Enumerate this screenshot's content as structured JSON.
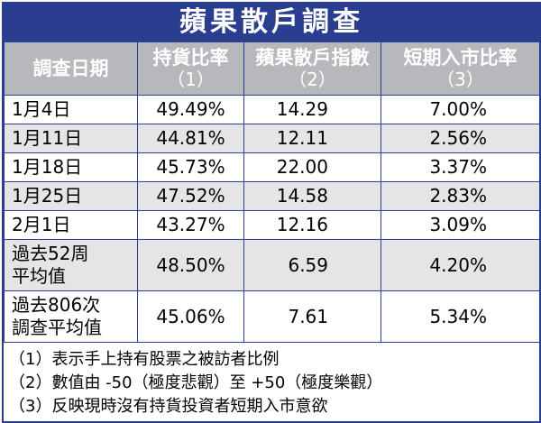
{
  "title": "蘋果散戶調查",
  "header": {
    "col1": "調查日期",
    "col2_main": "持貨比率",
    "col2_sub": "（1）",
    "col3_main": "蘋果散戶指數",
    "col3_sub": "（2）",
    "col4_main": "短期入市比率",
    "col4_sub": "（3）"
  },
  "rows": [
    {
      "label": [
        "1月4日"
      ],
      "holding": "49.49%",
      "index": "14.29",
      "entry": "7.00%"
    },
    {
      "label": [
        "1月11日"
      ],
      "holding": "44.81%",
      "index": "12.11",
      "entry": "2.56%"
    },
    {
      "label": [
        "1月18日"
      ],
      "holding": "45.73%",
      "index": "22.00",
      "entry": "3.37%"
    },
    {
      "label": [
        "1月25日"
      ],
      "holding": "47.52%",
      "index": "14.58",
      "entry": "2.83%"
    },
    {
      "label": [
        "2月1日"
      ],
      "holding": "43.27%",
      "index": "12.16",
      "entry": "3.09%"
    },
    {
      "label": [
        "過去52周",
        "平均值"
      ],
      "holding": "48.50%",
      "index": "6.59",
      "entry": "4.20%"
    },
    {
      "label": [
        "過去806次",
        "調查平均值"
      ],
      "holding": "45.06%",
      "index": "7.61",
      "entry": "5.34%"
    }
  ],
  "notes": [
    "（1）表示手上持有股票之被訪者比例",
    "（2）數值由 -50（極度悲觀）至 +50（極度樂觀）",
    "（3）反映現時沒有持貨投資者短期入市意欲"
  ],
  "colors": {
    "frame": "#2a3d8f",
    "header_bg": "#b7b8bc",
    "alt_row_bg": "#e5e5e7"
  }
}
